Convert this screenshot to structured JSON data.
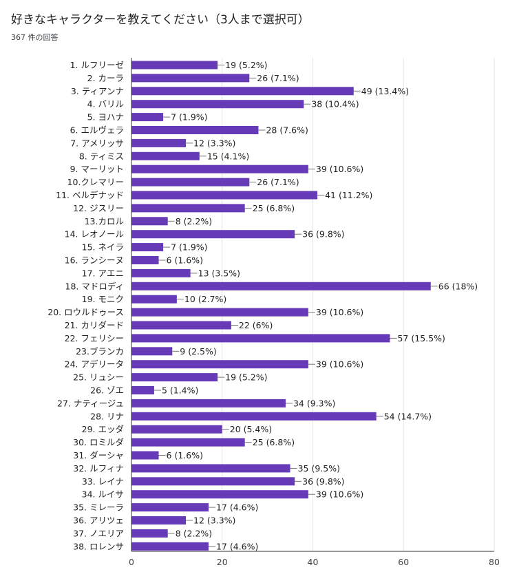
{
  "header": {
    "title": "好きなキャラクターを教えてください（3人まで選択可）",
    "response_count": "367 件の回答"
  },
  "colors": {
    "bar": "#673ab7",
    "grid": "#e6e6e6",
    "axis": "#333333",
    "leader": "#777777"
  },
  "chart_data": {
    "type": "bar",
    "orientation": "horizontal",
    "categories": [
      "1. ルフリーゼ",
      "2. カーラ",
      "3. ティアンナ",
      "4. バリル",
      "5. ヨハナ",
      "6. エルヴェラ",
      "7. アメリッサ",
      "8. ティミス",
      "9. マーリット",
      "10.クレマリー",
      "11. ベルデナッド",
      "12. ジスリー",
      "13.カロル",
      "14. レオノール",
      "15. ネイラ",
      "16. ランシーヌ",
      "17. アエニ",
      "18. マドロディ",
      "19. モニク",
      "20. ロウルドゥース",
      "21. カリダード",
      "22. フェリシー",
      "23.ブランカ",
      "24. アデリータ",
      "25. リュシー",
      "26. ゾエ",
      "27. ナティージュ",
      "28. リナ",
      "29. エッダ",
      "30. ロミルダ",
      "31. ダーシャ",
      "32. ルフィナ",
      "33. レイナ",
      "34. ルイサ",
      "35. ミレーラ",
      "36. アリツェ",
      "37. ノエリア",
      "38. ロレンサ"
    ],
    "values": [
      19,
      26,
      49,
      38,
      7,
      28,
      12,
      15,
      39,
      26,
      41,
      25,
      8,
      36,
      7,
      6,
      13,
      66,
      10,
      39,
      22,
      57,
      9,
      39,
      19,
      5,
      34,
      54,
      20,
      25,
      6,
      35,
      36,
      39,
      17,
      12,
      8,
      17
    ],
    "data_labels": [
      "19 (5.2%)",
      "26 (7.1%)",
      "49 (13.4%)",
      "38 (10.4%)",
      "7 (1.9%)",
      "28 (7.6%)",
      "12 (3.3%)",
      "15 (4.1%)",
      "39 (10.6%)",
      "26 (7.1%)",
      "41 (11.2%)",
      "25 (6.8%)",
      "8 (2.2%)",
      "36 (9.8%)",
      "7 (1.9%)",
      "6 (1.6%)",
      "13 (3.5%)",
      "66 (18%)",
      "10 (2.7%)",
      "39 (10.6%)",
      "22 (6%)",
      "57 (15.5%)",
      "9 (2.5%)",
      "39 (10.6%)",
      "19 (5.2%)",
      "5 (1.4%)",
      "34 (9.3%)",
      "54 (14.7%)",
      "20 (5.4%)",
      "25 (6.8%)",
      "6 (1.6%)",
      "35 (9.5%)",
      "36 (9.8%)",
      "39 (10.6%)",
      "17 (4.6%)",
      "12 (3.3%)",
      "8 (2.2%)",
      "17 (4.6%)"
    ],
    "xlim": [
      0,
      80
    ],
    "xticks": [
      0,
      20,
      40,
      60,
      80
    ],
    "xtick_labels": [
      "0",
      "20",
      "40",
      "60",
      "80"
    ],
    "grid": true
  }
}
